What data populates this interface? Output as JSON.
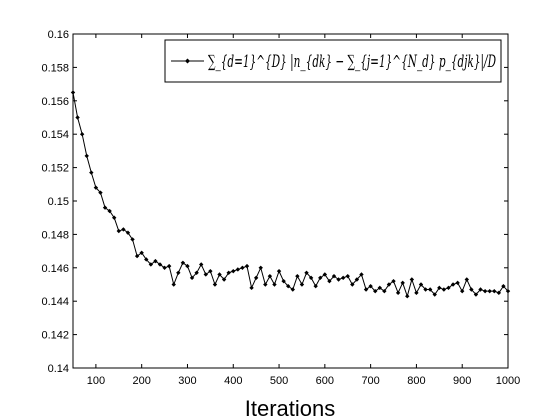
{
  "chart_data": {
    "type": "line",
    "title": "",
    "xlabel": "Iterations",
    "ylabel": "",
    "xlim": [
      50,
      1000
    ],
    "ylim": [
      0.14,
      0.16
    ],
    "xticks": [
      "100",
      "200",
      "300",
      "400",
      "500",
      "600",
      "700",
      "800",
      "900",
      "1000"
    ],
    "xtick_values": [
      100,
      200,
      300,
      400,
      500,
      600,
      700,
      800,
      900,
      1000
    ],
    "yticks": [
      "0.14",
      "0.142",
      "0.144",
      "0.146",
      "0.148",
      "0.15",
      "0.152",
      "0.154",
      "0.156",
      "0.158",
      "0.16"
    ],
    "ytick_values": [
      0.14,
      0.142,
      0.144,
      0.146,
      0.148,
      0.15,
      0.152,
      0.154,
      0.156,
      0.158,
      0.16
    ],
    "grid": false,
    "legend_position": "top-right",
    "series": [
      {
        "name": "∑_{d=1}^{D} |n_{dk} − ∑_{j=1}^{N_d} p_{djk}|/D",
        "color": "#000000",
        "marker": "diamond",
        "x": [
          50,
          60,
          70,
          80,
          90,
          100,
          110,
          120,
          130,
          140,
          150,
          160,
          170,
          180,
          190,
          200,
          210,
          220,
          230,
          240,
          250,
          260,
          270,
          280,
          290,
          300,
          310,
          320,
          330,
          340,
          350,
          360,
          370,
          380,
          390,
          400,
          410,
          420,
          430,
          440,
          450,
          460,
          470,
          480,
          490,
          500,
          510,
          520,
          530,
          540,
          550,
          560,
          570,
          580,
          590,
          600,
          610,
          620,
          630,
          640,
          650,
          660,
          670,
          680,
          690,
          700,
          710,
          720,
          730,
          740,
          750,
          760,
          770,
          780,
          790,
          800,
          810,
          820,
          830,
          840,
          850,
          860,
          870,
          880,
          890,
          900,
          910,
          920,
          930,
          940,
          950,
          960,
          970,
          980,
          990,
          1000
        ],
        "y": [
          0.1565,
          0.155,
          0.154,
          0.1527,
          0.1517,
          0.1508,
          0.1505,
          0.1496,
          0.1494,
          0.149,
          0.1482,
          0.1483,
          0.1481,
          0.1477,
          0.1467,
          0.1469,
          0.1465,
          0.1462,
          0.1464,
          0.1462,
          0.146,
          0.1461,
          0.145,
          0.1457,
          0.1463,
          0.1461,
          0.1454,
          0.1457,
          0.1462,
          0.1456,
          0.1458,
          0.145,
          0.1456,
          0.1453,
          0.1457,
          0.1458,
          0.1459,
          0.146,
          0.1461,
          0.1448,
          0.1454,
          0.146,
          0.145,
          0.1455,
          0.145,
          0.1458,
          0.1452,
          0.1449,
          0.1447,
          0.1455,
          0.145,
          0.1457,
          0.1454,
          0.1449,
          0.1454,
          0.1456,
          0.1452,
          0.1455,
          0.1453,
          0.1454,
          0.1455,
          0.145,
          0.1453,
          0.1456,
          0.1447,
          0.1449,
          0.1446,
          0.1448,
          0.1446,
          0.145,
          0.1452,
          0.1445,
          0.1451,
          0.1443,
          0.1453,
          0.1445,
          0.145,
          0.1447,
          0.1447,
          0.1444,
          0.1448,
          0.1447,
          0.1448,
          0.145,
          0.1451,
          0.1446,
          0.1453,
          0.1447,
          0.1444,
          0.1447,
          0.1446,
          0.1446,
          0.1446,
          0.1445,
          0.1449,
          0.1446
        ]
      }
    ]
  }
}
